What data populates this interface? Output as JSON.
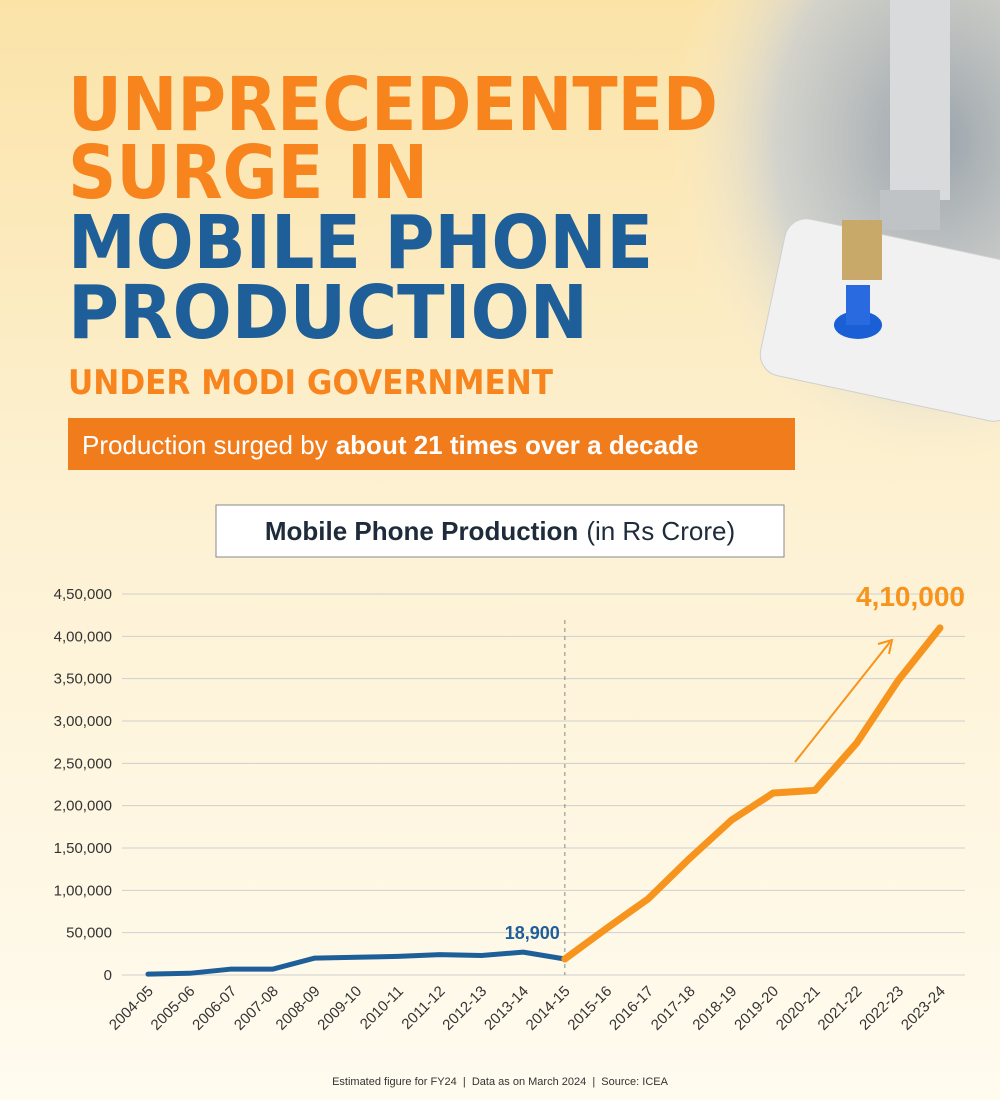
{
  "header": {
    "title_lines": [
      "UNPRECEDENTED",
      "SURGE IN",
      "MOBILE PHONE",
      "PRODUCTION"
    ],
    "subtitle": "UNDER MODI GOVERNMENT",
    "banner": {
      "text": "Production surged by",
      "highlight": "about 21 times over a decade"
    }
  },
  "chart_data": {
    "type": "line",
    "title": "Mobile Phone Production",
    "y_unit": "(in Rs Crore)",
    "categories": [
      "2004-05",
      "2005-06",
      "2006-07",
      "2007-08",
      "2008-09",
      "2009-10",
      "2010-11",
      "2011-12",
      "2012-13",
      "2013-14",
      "2014-15",
      "2015-16",
      "2016-17",
      "2017-18",
      "2018-19",
      "2019-20",
      "2020-21",
      "2021-22",
      "2022-23",
      "2023-24"
    ],
    "series": [
      {
        "color": "#1f5f99",
        "values": [
          1000,
          2000,
          7000,
          7000,
          20000,
          21000,
          22000,
          24000,
          23000,
          27000,
          18900,
          null,
          null,
          null,
          null,
          null,
          null,
          null,
          null,
          null
        ],
        "value_labels": [
          null,
          null,
          null,
          null,
          null,
          null,
          null,
          null,
          null,
          null,
          "18,900",
          null,
          null,
          null,
          null,
          null,
          null,
          null,
          null,
          null
        ]
      },
      {
        "color": "#f7941d",
        "values": [
          null,
          null,
          null,
          null,
          null,
          null,
          null,
          null,
          null,
          null,
          18900,
          55000,
          90000,
          138000,
          183000,
          215000,
          218000,
          274000,
          348000,
          410000
        ],
        "value_labels": [
          null,
          null,
          null,
          null,
          null,
          null,
          null,
          null,
          null,
          null,
          null,
          null,
          null,
          null,
          null,
          null,
          null,
          null,
          null,
          "4,10,000"
        ]
      }
    ],
    "ylim": [
      0,
      450000
    ],
    "yticks": [
      0,
      {
        "value": 50000,
        "label": "50,000"
      },
      {
        "value": 100000,
        "label": "1,00,000"
      },
      {
        "value": 150000,
        "label": "1,50,000"
      },
      {
        "value": 200000,
        "label": "2,00,000"
      },
      {
        "value": 250000,
        "label": "2,50,000"
      },
      {
        "value": 300000,
        "label": "3,00,000"
      },
      {
        "value": 350000,
        "label": "3,50,000"
      },
      {
        "value": 400000,
        "label": "4,00,000"
      },
      {
        "value": 450000,
        "label": "4,50,000"
      }
    ],
    "grid": true
  },
  "footer": "Estimated figure for FY24  |  Data as on March 2024  |  Source: ICEA"
}
